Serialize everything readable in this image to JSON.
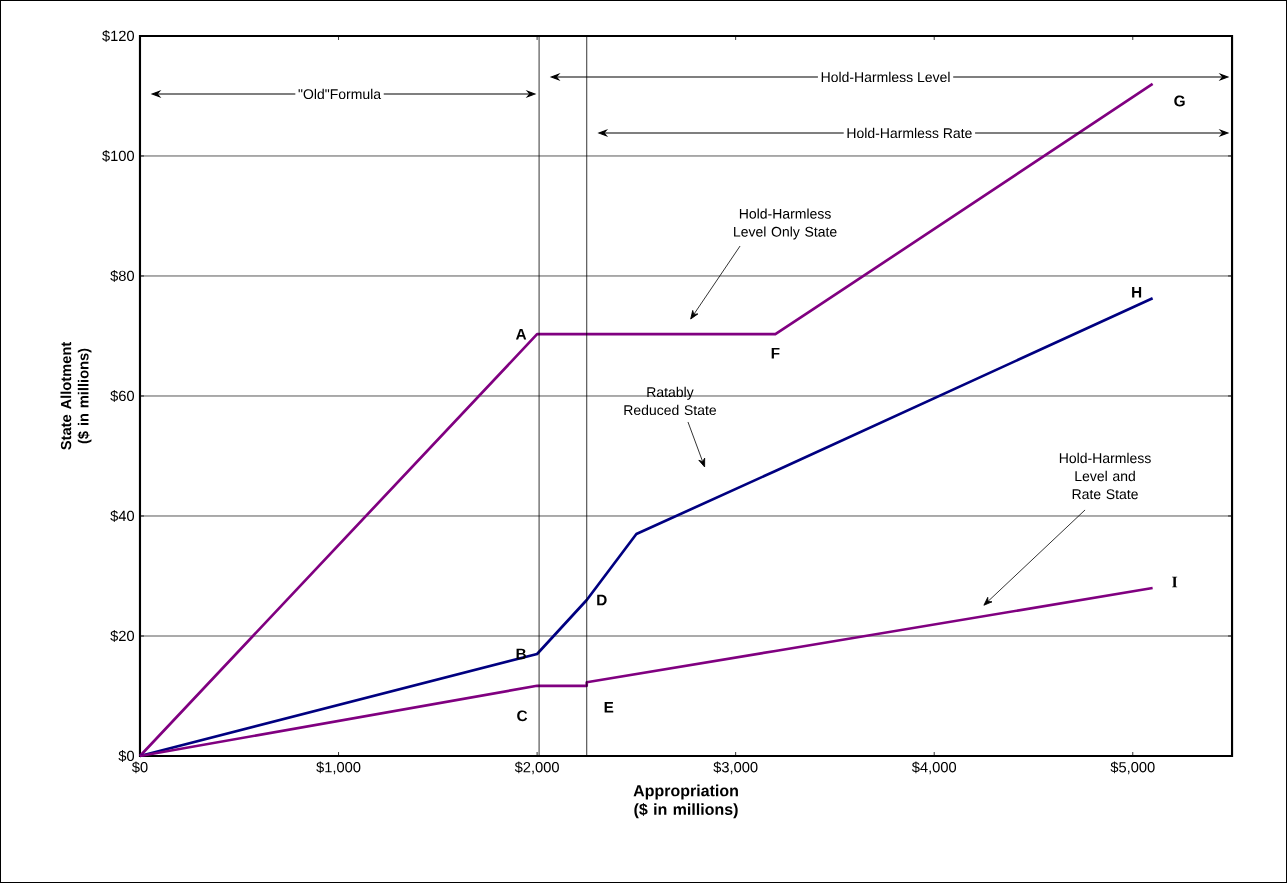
{
  "chart_data": {
    "type": "line",
    "xlabel": "Appropriation ($ in millions)",
    "ylabel": "State Allotment ($ in millions)",
    "xlim": [
      0,
      5500
    ],
    "ylim": [
      0,
      120
    ],
    "xticks": [
      {
        "value": 0,
        "label": "$0"
      },
      {
        "value": 1000,
        "label": "$1,000"
      },
      {
        "value": 2000,
        "label": "$2,000"
      },
      {
        "value": 3000,
        "label": "$3,000"
      },
      {
        "value": 4000,
        "label": "$4,000"
      },
      {
        "value": 5000,
        "label": "$5,000"
      }
    ],
    "yticks": [
      {
        "value": 0,
        "label": "$0"
      },
      {
        "value": 20,
        "label": "$20"
      },
      {
        "value": 40,
        "label": "$40"
      },
      {
        "value": 60,
        "label": "$60"
      },
      {
        "value": 80,
        "label": "$80"
      },
      {
        "value": 100,
        "label": "$100"
      },
      {
        "value": 120,
        "label": "$120"
      }
    ],
    "grid": "y",
    "marker": "none",
    "line_style": "solid",
    "series": [
      {
        "color": "#800080",
        "x": [
          0,
          2000,
          3200,
          3370,
          5100
        ],
        "values": [
          0,
          70.3,
          70.3,
          74,
          112
        ]
      },
      {
        "color": "#000080",
        "x": [
          0,
          2000,
          2250,
          2500,
          3200,
          5100
        ],
        "values": [
          0,
          17,
          26,
          37,
          47.5,
          76.3
        ]
      },
      {
        "color": "#800080",
        "x": [
          0,
          2000,
          2250,
          2250,
          3200,
          5100
        ],
        "values": [
          0,
          11.7,
          11.7,
          12.3,
          17.5,
          28
        ]
      }
    ],
    "ref_lines": [
      {
        "axis": "x",
        "value": 2010,
        "color": "#000000"
      },
      {
        "axis": "x",
        "value": 2250,
        "color": "#000000"
      }
    ],
    "annotations": [
      {
        "text": "A",
        "x": 2000,
        "y": 70.3
      },
      {
        "text": "B",
        "x": 2000,
        "y": 17
      },
      {
        "text": "C",
        "x": 2000,
        "y": 11.7
      },
      {
        "text": "D",
        "x": 2250,
        "y": 26
      },
      {
        "text": "E",
        "x": 2250,
        "y": 12.3
      },
      {
        "text": "F",
        "x": 3200,
        "y": 70.3
      },
      {
        "text": "G",
        "x": 5100,
        "y": 112
      },
      {
        "text": "H",
        "x": 5100,
        "y": 76.3
      },
      {
        "text": "I",
        "x": 5100,
        "y": 28
      },
      "Hold-Harmless Level Only State",
      "Ratably Reduced State",
      "Hold-Harmless Level and Rate State",
      "\"Old\"Formula",
      "Hold-Harmless Level",
      "Hold-Harmless Rate"
    ]
  }
}
